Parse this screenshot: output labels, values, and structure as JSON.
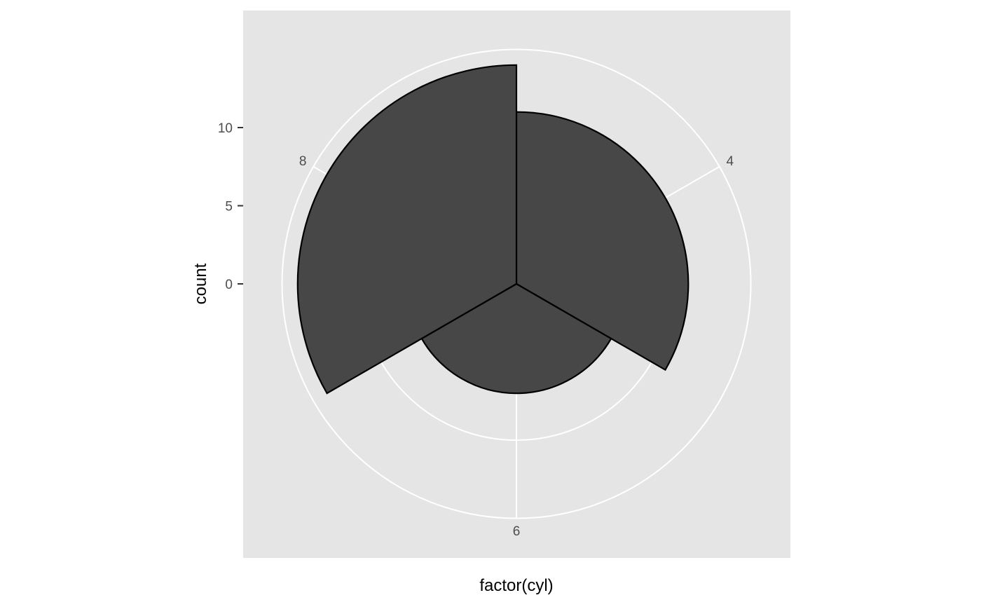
{
  "chart_data": {
    "type": "bar",
    "coord": "polar",
    "xlabel": "factor(cyl)",
    "ylabel": "count",
    "categories": [
      "4",
      "6",
      "8"
    ],
    "values": [
      11,
      7,
      14
    ],
    "y_ticks": [
      0,
      5,
      10
    ],
    "grid_circles": [
      10,
      15
    ],
    "colors": {
      "panel": "#e5e5e5",
      "grid": "#ffffff",
      "bar_fill": "#474747",
      "bar_stroke": "#000000",
      "tick_text": "#4d4d4d"
    }
  }
}
